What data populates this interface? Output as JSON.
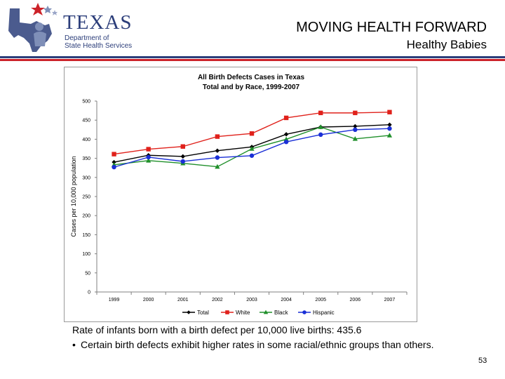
{
  "header": {
    "logo_text": "TEXAS",
    "logo_subtitle_line1": "Department of",
    "logo_subtitle_line2": "State Health Services",
    "title": "MOVING HEALTH FORWARD",
    "subtitle": "Healthy Babies"
  },
  "colors": {
    "brand_blue": "#2c3e7a",
    "brand_red": "#cc2229",
    "total": "#000000",
    "white": "#e0211b",
    "black": "#1f8f2a",
    "hispanic": "#1a2fd6"
  },
  "chart_data": {
    "type": "line",
    "title": "All Birth Defects Cases in Texas",
    "subtitle": "Total and by Race, 1999-2007",
    "xlabel": "",
    "ylabel": "Cases per 10,000 population",
    "categories": [
      "1999",
      "2000",
      "2001",
      "2002",
      "2003",
      "2004",
      "2005",
      "2006",
      "2007"
    ],
    "ylim": [
      0,
      500
    ],
    "yticks": [
      "0",
      "50",
      "100",
      "150",
      "200",
      "250",
      "300",
      "350",
      "400",
      "450",
      "500"
    ],
    "grid": false,
    "legend_position": "bottom",
    "series": [
      {
        "name": "Total",
        "marker": "diamond",
        "color": "#000000",
        "values": [
          340,
          358,
          355,
          370,
          380,
          413,
          432,
          434,
          438
        ]
      },
      {
        "name": "White",
        "marker": "square",
        "color": "#e0211b",
        "values": [
          361,
          374,
          381,
          407,
          415,
          456,
          469,
          469,
          471
        ]
      },
      {
        "name": "Black",
        "marker": "triangle",
        "color": "#1f8f2a",
        "values": [
          333,
          344,
          337,
          328,
          375,
          400,
          432,
          401,
          410
        ]
      },
      {
        "name": "Hispanic",
        "marker": "circle",
        "color": "#1a2fd6",
        "values": [
          327,
          353,
          342,
          352,
          357,
          393,
          412,
          425,
          428
        ]
      }
    ]
  },
  "body": {
    "caption": "Rate of infants born with a birth defect per 10,000 live births: 435.6",
    "bullets": [
      {
        "symbol": "•",
        "text": "Certain birth defects exhibit higher rates in some racial/ethnic groups than others."
      }
    ]
  },
  "footer": {
    "page_number": "53"
  }
}
